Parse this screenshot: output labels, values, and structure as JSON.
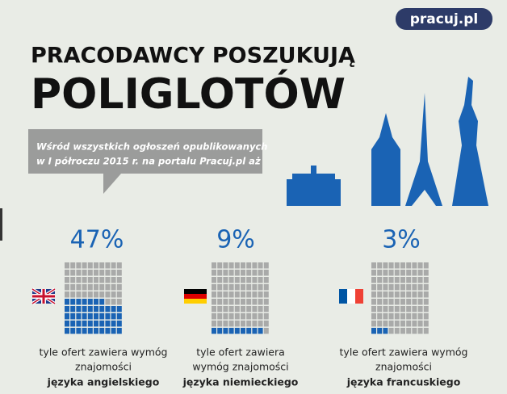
{
  "logo": "pracuj.pl",
  "title_lines": [
    "PRACODAWCY POSZUKUJĄ",
    "POLIGLOTÓW"
  ],
  "bubble_lines": [
    "Wśród wszystkich ogłoszeń opublikowanych",
    "w I półroczu 2015 r. na portalu Pracuj.pl aż"
  ],
  "chart_data": {
    "type": "waffle",
    "categories": [
      "języka angielskiego",
      "języka niemieckiego",
      "języka francuskiego"
    ],
    "caption_lines": [
      [
        "tyle ofert zawiera wymóg",
        "znajomości"
      ],
      [
        "tyle ofert zawiera",
        "wymóg znajomości"
      ],
      [
        "tyle ofert zawiera wymóg",
        "znajomości"
      ]
    ],
    "values": [
      47,
      9,
      3
    ],
    "value_labels": [
      "47%",
      "9%",
      "3%"
    ],
    "total": 100,
    "color": "#1a63b4",
    "empty_color": "#a9aaa9"
  }
}
